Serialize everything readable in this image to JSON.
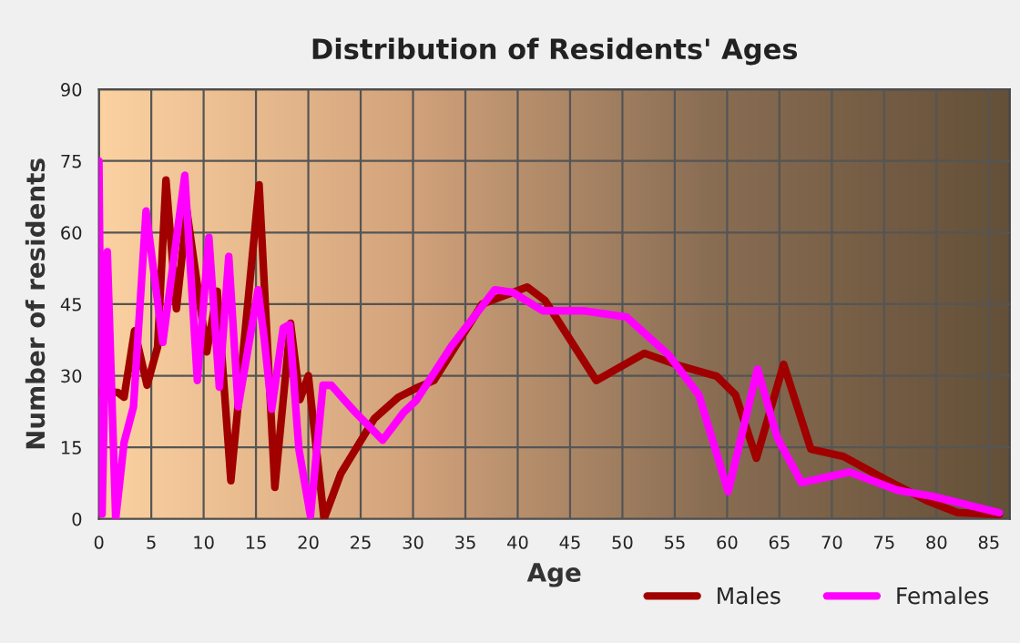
{
  "chart_data": {
    "type": "line",
    "title": "Distribution of Residents' Ages",
    "xlabel": "Age",
    "ylabel": "Number of residents",
    "xlim": [
      0,
      87
    ],
    "ylim": [
      0,
      90
    ],
    "xticks": [
      0,
      5,
      10,
      15,
      20,
      25,
      30,
      35,
      40,
      45,
      50,
      55,
      60,
      65,
      70,
      75,
      80,
      85
    ],
    "yticks": [
      0,
      15,
      30,
      45,
      60,
      75,
      90
    ],
    "grid": true,
    "legend": "bottom right",
    "marker": "none",
    "line_style": "solid",
    "series": [
      {
        "name": "Males",
        "color": "#a00000",
        "x": [
          0,
          1,
          1.8,
          2.4,
          3.4,
          4.6,
          5.6,
          6.4,
          7.4,
          8.4,
          10.3,
          11.3,
          12.6,
          15.3,
          16.8,
          18.3,
          19.2,
          20,
          21.5,
          23.1,
          26.3,
          28.6,
          30.3,
          32,
          36.6,
          40.9,
          42.6,
          47.5,
          52.1,
          55.6,
          59,
          60.8,
          62.8,
          65.4,
          68,
          71.1,
          75.1,
          79.1,
          82,
          86
        ],
        "values": [
          26.6,
          26.6,
          26.5,
          25.5,
          39.4,
          28,
          36,
          71,
          44,
          64.5,
          35,
          47.7,
          8,
          70,
          6.6,
          41,
          25,
          30,
          0,
          9.5,
          21,
          25.5,
          27.4,
          29,
          45,
          48.6,
          45.8,
          29,
          34.7,
          32,
          29.9,
          26,
          12.7,
          32.4,
          14.6,
          13.1,
          8.3,
          3.8,
          1.3,
          0.9
        ]
      },
      {
        "name": "Females",
        "color": "#ff00ff",
        "x": [
          0,
          0.3,
          0.8,
          1.6,
          2.4,
          3.3,
          4.5,
          6.1,
          8.2,
          9.4,
          10.5,
          11.5,
          12.4,
          13.3,
          15.2,
          15.8,
          16.5,
          17.6,
          18.2,
          19.1,
          20.2,
          21.4,
          22.2,
          23.4,
          24.5,
          27.1,
          29.1,
          30.3,
          33.7,
          37.8,
          39.5,
          42.4,
          46.4,
          50.4,
          54.4,
          57.3,
          60.1,
          62.9,
          64.8,
          67.1,
          71.7,
          76.3,
          79.7,
          86
        ],
        "values": [
          75,
          1,
          56,
          0,
          16,
          23.5,
          64.5,
          37,
          72,
          29,
          59,
          27.6,
          55,
          23.5,
          48,
          37.5,
          23,
          40,
          40.7,
          14.6,
          0.6,
          28,
          28,
          25,
          22.3,
          16.5,
          22.3,
          24.8,
          36.3,
          48,
          47.5,
          43.6,
          43.6,
          42.3,
          34.4,
          26,
          5.7,
          31.4,
          17,
          7.6,
          9.8,
          6,
          4.7,
          1.3
        ]
      }
    ]
  }
}
